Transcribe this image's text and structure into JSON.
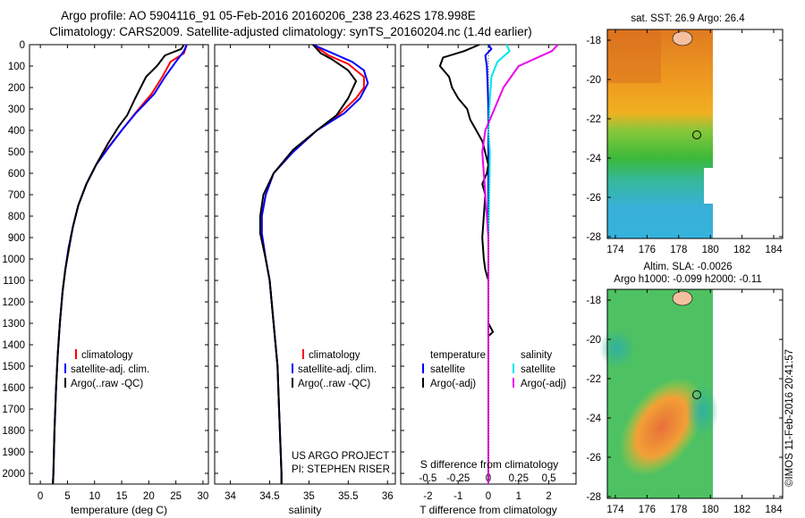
{
  "figure": {
    "title_line1": "Argo profile: AO 5904116_91 05-Feb-2016 20160206_238 23.462S 178.998E",
    "title_line2": "Climatology: CARS2009. Satellite-adjusted climatology: synTS_20160204.nc (1.4d earlier)",
    "credit": "©IMOS 11-Feb-2016 20:41:57",
    "project_line1": "US ARGO PROJECT",
    "project_line2": "PI: STEPHEN RISER",
    "colors": {
      "climatology": "#ff0000",
      "satellite": "#0000ff",
      "argo": "#000000",
      "salinity_satellite": "#00e5ee",
      "salinity_argo": "#ee00ee"
    }
  },
  "legend_profiles": [
    "climatology",
    "satellite-adj. clim.",
    "Argo(..raw -QC)"
  ],
  "legend_diff": {
    "temp_header": "temperature",
    "sal_header": "salinity",
    "temp_items": [
      "satellite",
      "Argo(-adj)"
    ],
    "sal_items": [
      "satellite",
      "Argo(-adj)"
    ]
  },
  "maps": {
    "sst_title": "sat. SST: 26.9  Argo: 26.4",
    "sla_title_line1": "Altim. SLA: -0.0026",
    "sla_title_line2": "Argo h1000: -0.099 h2000: -0.11",
    "y_ticks": [
      "-18",
      "-20",
      "-22",
      "-24",
      "-26",
      "-28"
    ],
    "x_ticks": [
      "174",
      "176",
      "178",
      "180",
      "182",
      "184"
    ]
  },
  "chart_data": [
    {
      "type": "line",
      "xlabel": "temperature (deg C)",
      "xlim": [
        -2,
        31
      ],
      "ylim": [
        0,
        2050
      ],
      "x_ticks": [
        0,
        5,
        10,
        15,
        20,
        25,
        30
      ],
      "y_ticks": [
        0,
        100,
        200,
        300,
        400,
        500,
        600,
        700,
        800,
        900,
        1000,
        1100,
        1200,
        1300,
        1400,
        1500,
        1600,
        1700,
        1800,
        1900,
        2000
      ],
      "series": [
        {
          "name": "climatology",
          "points": [
            [
              27,
              0
            ],
            [
              26.5,
              40
            ],
            [
              24,
              80
            ],
            [
              22.5,
              150
            ],
            [
              20.5,
              230
            ],
            [
              17.5,
              320
            ],
            [
              15,
              400
            ],
            [
              12.5,
              480
            ],
            [
              10.3,
              560
            ],
            [
              8.5,
              650
            ],
            [
              7,
              750
            ],
            [
              6,
              850
            ],
            [
              5.2,
              950
            ],
            [
              4.6,
              1050
            ],
            [
              4.1,
              1150
            ],
            [
              3.6,
              1300
            ],
            [
              3.2,
              1450
            ],
            [
              2.9,
              1600
            ],
            [
              2.6,
              1800
            ],
            [
              2.4,
              2000
            ],
            [
              2.3,
              2050
            ]
          ]
        },
        {
          "name": "satellite-adj. clim.",
          "points": [
            [
              27,
              0
            ],
            [
              26.5,
              30
            ],
            [
              25,
              80
            ],
            [
              23,
              150
            ],
            [
              21,
              230
            ],
            [
              17.6,
              320
            ],
            [
              15,
              400
            ],
            [
              12.6,
              480
            ],
            [
              10.3,
              560
            ],
            [
              8.5,
              650
            ],
            [
              7,
              750
            ],
            [
              6,
              850
            ],
            [
              5.2,
              950
            ],
            [
              4.6,
              1050
            ],
            [
              4.1,
              1150
            ],
            [
              3.6,
              1300
            ],
            [
              3.2,
              1450
            ],
            [
              2.9,
              1600
            ],
            [
              2.6,
              1800
            ],
            [
              2.4,
              2000
            ],
            [
              2.3,
              2050
            ]
          ]
        },
        {
          "name": "Argo(..raw -QC)",
          "points": [
            [
              26.5,
              0
            ],
            [
              26,
              20
            ],
            [
              23,
              50
            ],
            [
              21.5,
              100
            ],
            [
              19.5,
              150
            ],
            [
              17.5,
              250
            ],
            [
              16,
              330
            ],
            [
              14.5,
              380
            ],
            [
              12.5,
              460
            ],
            [
              10.3,
              560
            ],
            [
              8.5,
              650
            ],
            [
              7,
              750
            ],
            [
              6,
              850
            ],
            [
              5.3,
              950
            ],
            [
              4.6,
              1050
            ],
            [
              4.1,
              1150
            ],
            [
              3.6,
              1300
            ],
            [
              3.2,
              1450
            ],
            [
              2.9,
              1600
            ],
            [
              2.6,
              1800
            ],
            [
              2.4,
              2000
            ],
            [
              2.3,
              2050
            ]
          ]
        }
      ]
    },
    {
      "type": "line",
      "xlabel": "salinity",
      "xlim": [
        33.8,
        36.1
      ],
      "ylim": [
        0,
        2050
      ],
      "x_ticks": [
        34,
        34.5,
        35,
        35.5,
        36
      ],
      "series": [
        {
          "name": "climatology",
          "points": [
            [
              35.05,
              0
            ],
            [
              35.25,
              50
            ],
            [
              35.5,
              90
            ],
            [
              35.7,
              150
            ],
            [
              35.7,
              200
            ],
            [
              35.6,
              250
            ],
            [
              35.4,
              320
            ],
            [
              35.1,
              400
            ],
            [
              34.8,
              500
            ],
            [
              34.55,
              600
            ],
            [
              34.45,
              700
            ],
            [
              34.4,
              800
            ],
            [
              34.4,
              880
            ],
            [
              34.45,
              1000
            ],
            [
              34.5,
              1100
            ],
            [
              34.55,
              1300
            ],
            [
              34.6,
              1500
            ],
            [
              34.62,
              1700
            ],
            [
              34.65,
              2000
            ],
            [
              34.65,
              2050
            ]
          ]
        },
        {
          "name": "satellite-adj. clim.",
          "points": [
            [
              35.05,
              0
            ],
            [
              35.3,
              40
            ],
            [
              35.55,
              80
            ],
            [
              35.7,
              120
            ],
            [
              35.75,
              180
            ],
            [
              35.65,
              250
            ],
            [
              35.45,
              320
            ],
            [
              35.1,
              400
            ],
            [
              34.8,
              500
            ],
            [
              34.55,
              600
            ],
            [
              34.45,
              700
            ],
            [
              34.4,
              800
            ],
            [
              34.4,
              880
            ],
            [
              34.45,
              1000
            ],
            [
              34.5,
              1100
            ],
            [
              34.55,
              1300
            ],
            [
              34.6,
              1500
            ],
            [
              34.62,
              1700
            ],
            [
              34.65,
              2000
            ],
            [
              34.65,
              2050
            ]
          ]
        },
        {
          "name": "Argo(..raw -QC)",
          "points": [
            [
              35.05,
              0
            ],
            [
              35.15,
              40
            ],
            [
              35.3,
              70
            ],
            [
              35.5,
              120
            ],
            [
              35.6,
              170
            ],
            [
              35.5,
              250
            ],
            [
              35.35,
              330
            ],
            [
              35.1,
              400
            ],
            [
              34.8,
              490
            ],
            [
              34.55,
              600
            ],
            [
              34.42,
              700
            ],
            [
              34.38,
              800
            ],
            [
              34.38,
              880
            ],
            [
              34.45,
              1000
            ],
            [
              34.5,
              1100
            ],
            [
              34.55,
              1300
            ],
            [
              34.6,
              1500
            ],
            [
              34.62,
              1700
            ],
            [
              34.65,
              2000
            ],
            [
              34.65,
              2050
            ]
          ]
        }
      ]
    },
    {
      "type": "line",
      "title": "S difference from climatology",
      "xlabel": "T difference from climatology",
      "xlim": [
        -2.9,
        2.9
      ],
      "ylim": [
        0,
        2050
      ],
      "x_ticks_T": [
        -2,
        -1,
        0,
        1,
        2
      ],
      "x_ticks_S": [
        -0.5,
        -0.25,
        0,
        0.25,
        0.5
      ],
      "series": [
        {
          "name": "temperature satellite",
          "points": [
            [
              0,
              0
            ],
            [
              0.1,
              20
            ],
            [
              -0.1,
              50
            ],
            [
              -0.05,
              100
            ],
            [
              -0.02,
              200
            ],
            [
              0,
              300
            ],
            [
              0,
              500
            ],
            [
              0,
              800
            ],
            [
              0,
              1100
            ],
            [
              0,
              1500
            ],
            [
              0,
              2000
            ],
            [
              0,
              2050
            ]
          ]
        },
        {
          "name": "temperature Argo(-adj)",
          "points": [
            [
              -0.3,
              0
            ],
            [
              -0.8,
              30
            ],
            [
              -1.5,
              60
            ],
            [
              -1.6,
              100
            ],
            [
              -1.3,
              150
            ],
            [
              -1.2,
              200
            ],
            [
              -1.0,
              250
            ],
            [
              -0.7,
              300
            ],
            [
              -0.6,
              350
            ],
            [
              -0.4,
              400
            ],
            [
              -0.2,
              450
            ],
            [
              0,
              560
            ],
            [
              -0.05,
              600
            ],
            [
              -0.2,
              650
            ],
            [
              -0.1,
              700
            ],
            [
              -0.15,
              800
            ],
            [
              -0.2,
              900
            ],
            [
              -0.15,
              1000
            ],
            [
              -0.1,
              1050
            ],
            [
              0,
              1100
            ],
            [
              0,
              1300
            ],
            [
              0.15,
              1340
            ],
            [
              0,
              1360
            ],
            [
              0,
              2000
            ],
            [
              0,
              2050
            ]
          ]
        },
        {
          "name": "salinity satellite",
          "points": [
            [
              0.6,
              0
            ],
            [
              0.7,
              30
            ],
            [
              0.3,
              80
            ],
            [
              0.1,
              150
            ],
            [
              0.05,
              250
            ],
            [
              0,
              400
            ],
            [
              0.05,
              500
            ],
            [
              0.03,
              700
            ],
            [
              0,
              900
            ],
            [
              0,
              1100
            ],
            [
              0,
              1500
            ],
            [
              0,
              2000
            ],
            [
              0,
              2050
            ]
          ]
        },
        {
          "name": "salinity Argo(-adj)",
          "points": [
            [
              2.3,
              0
            ],
            [
              2.1,
              30
            ],
            [
              1.0,
              100
            ],
            [
              0.5,
              200
            ],
            [
              0.2,
              300
            ],
            [
              -0.1,
              400
            ],
            [
              -0.2,
              500
            ],
            [
              -0.15,
              600
            ],
            [
              -0.1,
              700
            ],
            [
              -0.05,
              800
            ],
            [
              0,
              900
            ],
            [
              0,
              1000
            ],
            [
              0,
              1500
            ],
            [
              0,
              2000
            ],
            [
              0,
              2050
            ]
          ]
        }
      ]
    }
  ]
}
